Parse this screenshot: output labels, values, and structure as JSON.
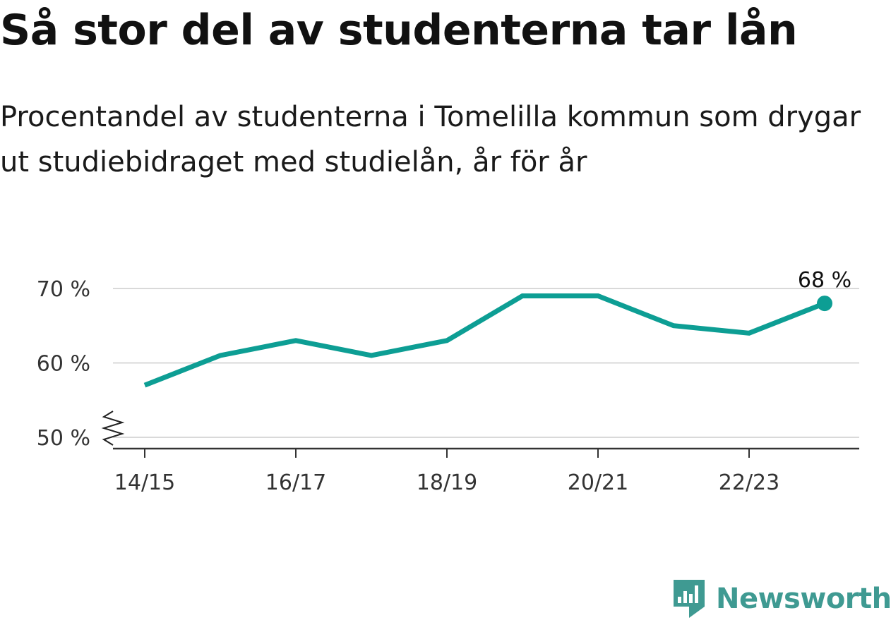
{
  "title": "Så stor del av studenterna tar lån",
  "subtitle": "Procentandel av studenterna i Tomelilla kommun som drygar ut studiebidraget med studielån, år för år",
  "brand": {
    "name": "Newsworthy",
    "color": "#3f9a92",
    "icon": "newsworthy-logo-icon"
  },
  "chart_data": {
    "type": "line",
    "title": "Så stor del av studenterna tar lån",
    "xlabel": "",
    "ylabel": "",
    "x": [
      "14/15",
      "15/16",
      "16/17",
      "17/18",
      "18/19",
      "19/20",
      "20/21",
      "21/22",
      "22/23",
      "23/24"
    ],
    "x_tick_labels": [
      "14/15",
      "16/17",
      "18/19",
      "20/21",
      "22/23"
    ],
    "y_tick_labels": [
      "70 %",
      "60 %",
      "50 %"
    ],
    "y_ticks": [
      70,
      60,
      50
    ],
    "ylim": [
      50,
      72
    ],
    "y_axis_break": true,
    "grid": true,
    "series": [
      {
        "values": [
          57,
          61,
          63,
          61,
          63,
          69,
          69,
          65,
          64,
          68
        ],
        "color": "#0d9e94"
      }
    ],
    "end_label": "68 %"
  }
}
